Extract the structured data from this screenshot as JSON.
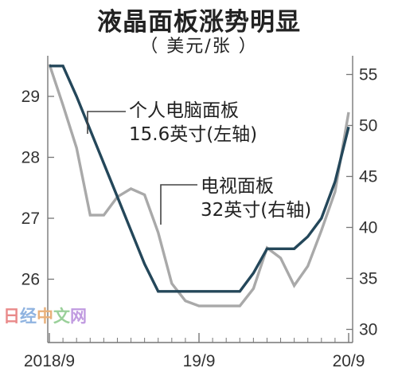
{
  "chart_data": {
    "type": "line",
    "title": "液晶面板涨势明显",
    "subtitle": "（ 美元/张 ）",
    "x_ticks": [
      "2018/9",
      "19/9",
      "20/9"
    ],
    "left_axis": {
      "ylim": [
        25.5,
        30.5
      ],
      "ticks": [
        26,
        27,
        28,
        29
      ]
    },
    "right_axis": {
      "ylim": [
        30,
        60
      ],
      "ticks": [
        30,
        35,
        40,
        45,
        50,
        55
      ]
    },
    "series": [
      {
        "name": "个人电脑面板 15.6英寸(左轴)",
        "axis": "left",
        "color": "#24475a",
        "label_lines": [
          "个人电脑面板",
          "15.6英寸(左轴)"
        ],
        "points": [
          [
            0,
            29.5
          ],
          [
            1,
            29.5
          ],
          [
            2,
            29.0
          ],
          [
            3,
            28.45
          ],
          [
            4,
            27.9
          ],
          [
            5,
            27.35
          ],
          [
            6,
            26.8
          ],
          [
            7,
            26.25
          ],
          [
            8,
            25.8
          ],
          [
            9,
            25.8
          ],
          [
            10,
            25.8
          ],
          [
            11,
            25.8
          ],
          [
            12,
            25.8
          ],
          [
            13,
            25.8
          ],
          [
            14,
            25.8
          ],
          [
            15,
            26.1
          ],
          [
            16,
            26.5
          ],
          [
            17,
            26.5
          ],
          [
            18,
            26.5
          ],
          [
            19,
            26.7
          ],
          [
            20,
            27.0
          ],
          [
            21,
            27.6
          ],
          [
            22,
            28.5
          ]
        ]
      },
      {
        "name": "电视面板 32英寸(右轴)",
        "axis": "right",
        "color": "#a9a9a9",
        "label_lines": [
          "电视面板",
          "32英寸(右轴)"
        ],
        "points": [
          [
            0,
            56.0
          ],
          [
            1,
            52.0
          ],
          [
            2,
            47.8
          ],
          [
            3,
            41.2
          ],
          [
            4,
            41.2
          ],
          [
            5,
            43.0
          ],
          [
            6,
            43.8
          ],
          [
            7,
            43.2
          ],
          [
            8,
            39.5
          ],
          [
            9,
            34.5
          ],
          [
            10,
            32.8
          ],
          [
            11,
            32.3
          ],
          [
            12,
            32.3
          ],
          [
            13,
            32.3
          ],
          [
            14,
            32.3
          ],
          [
            15,
            34.0
          ],
          [
            16,
            38.0
          ],
          [
            17,
            37.0
          ],
          [
            18,
            34.3
          ],
          [
            19,
            36.2
          ],
          [
            20,
            39.7
          ],
          [
            21,
            43.5
          ],
          [
            22,
            51.3
          ]
        ]
      }
    ],
    "grid": false,
    "legend": "inline annotations"
  },
  "watermark": "日经中文网"
}
